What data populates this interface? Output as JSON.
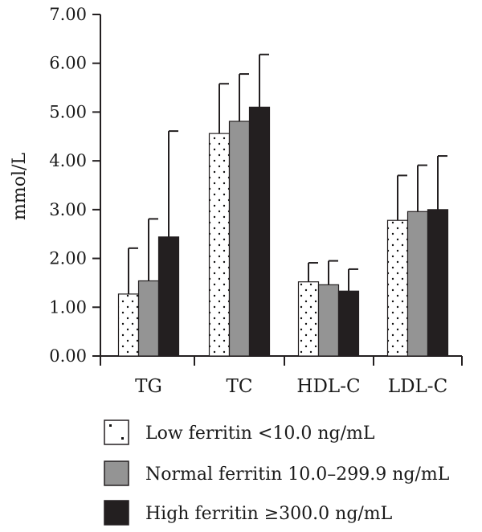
{
  "chart_data": {
    "type": "bar",
    "ylabel": "mmol/L",
    "xlabel": "",
    "ylim": [
      0,
      7
    ],
    "yticks": [
      "0.00",
      "1.00",
      "2.00",
      "3.00",
      "4.00",
      "5.00",
      "6.00",
      "7.00"
    ],
    "categories": [
      "TG",
      "TC",
      "HDL-C",
      "LDL-C"
    ],
    "grid": false,
    "legend_position": "bottom",
    "series": [
      {
        "name": "Low ferritin <10.0 ng/mL",
        "values": [
          1.27,
          4.56,
          1.52,
          2.78
        ],
        "error_upper": [
          2.21,
          5.58,
          1.91,
          3.7
        ],
        "pattern": "dots",
        "color": "#ffffff"
      },
      {
        "name": "Normal ferritin 10.0–299.9 ng/mL",
        "values": [
          1.54,
          4.81,
          1.46,
          2.96
        ],
        "error_upper": [
          2.81,
          5.78,
          1.95,
          3.91
        ],
        "pattern": "solid",
        "color": "#949494"
      },
      {
        "name": "High ferritin ≥300.0 ng/mL",
        "values": [
          2.44,
          5.1,
          1.33,
          3.0
        ],
        "error_upper": [
          4.61,
          6.18,
          1.78,
          4.1
        ],
        "pattern": "solid",
        "color": "#231f20"
      }
    ]
  }
}
